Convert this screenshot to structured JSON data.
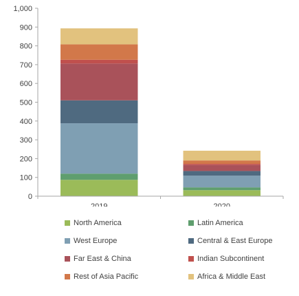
{
  "chart_data": {
    "type": "bar",
    "stacked": true,
    "categories": [
      "2019",
      "2020"
    ],
    "ylim": [
      0,
      1000
    ],
    "yticks": [
      0,
      100,
      200,
      300,
      400,
      500,
      600,
      700,
      800,
      900,
      1000
    ],
    "ytick_labels": [
      "0",
      "100",
      "200",
      "300",
      "400",
      "500",
      "600",
      "700",
      "800",
      "900",
      "1,000"
    ],
    "grid": false,
    "legend_position": "bottom",
    "series": [
      {
        "name": "North America",
        "color": "#9bbb59",
        "values": [
          87,
          32
        ]
      },
      {
        "name": "Latin America",
        "color": "#5f9e6e",
        "values": [
          33,
          15
        ]
      },
      {
        "name": "West Europe",
        "color": "#7f9fb3",
        "values": [
          268,
          62
        ]
      },
      {
        "name": "Central & East Europe",
        "color": "#4f6a80",
        "values": [
          122,
          25
        ]
      },
      {
        "name": "Far East & China",
        "color": "#a9525a",
        "values": [
          196,
          32
        ]
      },
      {
        "name": "Indian Subcontinent",
        "color": "#c0504d",
        "values": [
          20,
          6
        ]
      },
      {
        "name": "Rest of Asia Pacific",
        "color": "#d2784a",
        "values": [
          82,
          18
        ]
      },
      {
        "name": "Africa & Middle East",
        "color": "#e2c27e",
        "values": [
          85,
          52
        ]
      }
    ]
  }
}
